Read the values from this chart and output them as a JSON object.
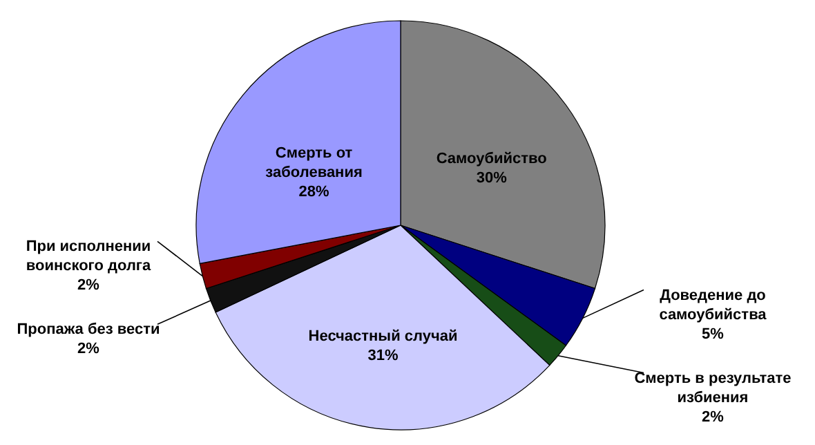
{
  "chart_data": {
    "type": "pie",
    "categories": [
      "Самоубийство",
      "Доведение до самоубийства",
      "Смерть в результате избиения",
      "Несчастный случай",
      "Пропажа без вести",
      "При исполнении воинского долга",
      "Смерть от заболевания"
    ],
    "values": [
      30,
      5,
      2,
      31,
      2,
      2,
      28
    ],
    "colors": [
      "#808080",
      "#000080",
      "#174d17",
      "#ccccff",
      "#111111",
      "#800000",
      "#9999ff"
    ],
    "value_labels": [
      "30%",
      "5%",
      "2%",
      "31%",
      "2%",
      "2%",
      "28%"
    ]
  }
}
